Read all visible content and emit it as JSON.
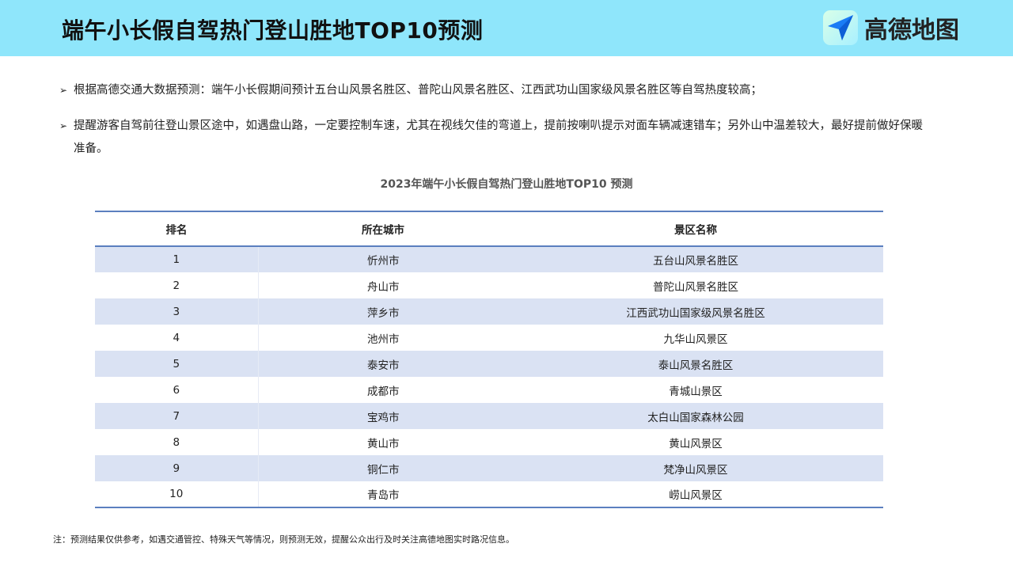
{
  "header": {
    "title": "端午小长假自驾热门登山胜地TOP10预测",
    "logo_text": "高德地图",
    "bg_color": "#8fe6fb"
  },
  "bullets": [
    "根据高德交通大数据预测：端午小长假期间预计五台山风景名胜区、普陀山风景名胜区、江西武功山国家级风景名胜区等自驾热度较高；",
    "提醒游客自驾前往登山景区途中，如遇盘山路，一定要控制车速，尤其在视线欠佳的弯道上，提前按喇叭提示对面车辆减速错车；另外山中温差较大，最好提前做好保暖准备。"
  ],
  "table": {
    "caption": "2023年端午小长假自驾热门登山胜地TOP10 预测",
    "columns": [
      "排名",
      "所在城市",
      "景区名称"
    ],
    "rows": [
      [
        "1",
        "忻州市",
        "五台山风景名胜区"
      ],
      [
        "2",
        "舟山市",
        "普陀山风景名胜区"
      ],
      [
        "3",
        "萍乡市",
        "江西武功山国家级风景名胜区"
      ],
      [
        "4",
        "池州市",
        "九华山风景区"
      ],
      [
        "5",
        "泰安市",
        "泰山风景名胜区"
      ],
      [
        "6",
        "成都市",
        "青城山景区"
      ],
      [
        "7",
        "宝鸡市",
        "太白山国家森林公园"
      ],
      [
        "8",
        "黄山市",
        "黄山风景区"
      ],
      [
        "9",
        "铜仁市",
        "梵净山风景区"
      ],
      [
        "10",
        "青岛市",
        "崂山风景区"
      ]
    ]
  },
  "note": "注：预测结果仅供参考，如遇交通管控、特殊天气等情况，则预测无效，提醒公众出行及时关注高德地图实时路况信息。"
}
